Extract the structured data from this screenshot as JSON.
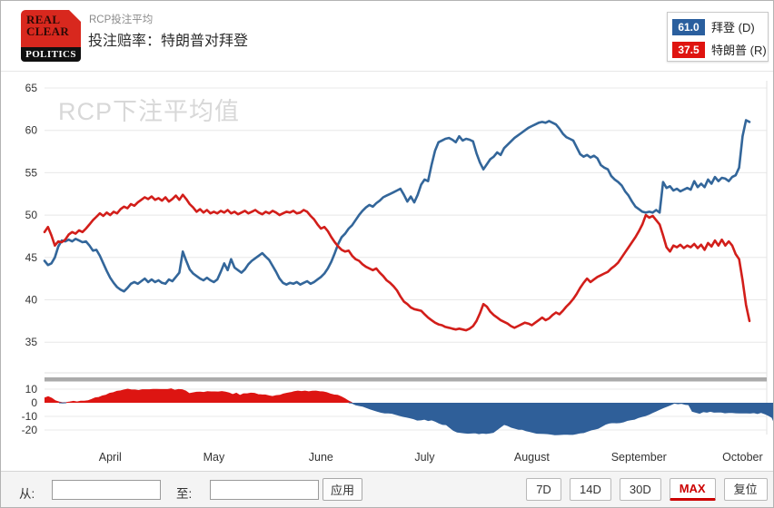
{
  "header": {
    "brand": {
      "line1": "REAL",
      "line2": "CLEAR",
      "line3": "POLITICS"
    },
    "subtitle": "RCP投注平均",
    "title": "投注赔率：特朗普对拜登"
  },
  "legend": {
    "items": [
      {
        "value": "61.0",
        "label": "拜登 (D)",
        "color": "#2a5f9e"
      },
      {
        "value": "37.5",
        "label": "特朗普 (R)",
        "color": "#df1410"
      }
    ]
  },
  "controls": {
    "from_label": "从:",
    "to_label": "至:",
    "from_value": "",
    "to_value": "",
    "apply_label": "应用",
    "range_buttons": [
      {
        "key": "7d",
        "label": "7D",
        "active": false
      },
      {
        "key": "14d",
        "label": "14D",
        "active": false
      },
      {
        "key": "30d",
        "label": "30D",
        "active": false
      },
      {
        "key": "max",
        "label": "MAX",
        "active": true
      },
      {
        "key": "reset",
        "label": "复位",
        "active": false
      }
    ]
  },
  "chart_data": {
    "type": "line",
    "watermark": "RCP下注平均值",
    "main_panel": {
      "y_ticks": [
        65,
        60,
        55,
        50,
        45,
        40,
        35
      ],
      "ylim": [
        31.5,
        66
      ]
    },
    "navigator_panel": {
      "formula": "特朗普 - 拜登 (difference, red = Trump lead, blue = Biden lead)",
      "y_ticks": [
        10,
        0,
        -10,
        -20
      ],
      "ylim": [
        -25,
        12
      ]
    },
    "x_axis": {
      "unit": "day_index",
      "month_ticks": [
        {
          "label": "April",
          "day": 19
        },
        {
          "label": "May",
          "day": 49
        },
        {
          "label": "June",
          "day": 80
        },
        {
          "label": "July",
          "day": 110
        },
        {
          "label": "August",
          "day": 141
        },
        {
          "label": "September",
          "day": 172
        },
        {
          "label": "October",
          "day": 202
        }
      ]
    },
    "series": [
      {
        "name": "拜登 (D)",
        "color": "#33669a",
        "current": 61.0,
        "day_start": 0,
        "day_step": 1,
        "values": [
          44.6,
          44.1,
          44.3,
          45.0,
          46.3,
          47.0,
          46.9,
          47.1,
          46.9,
          47.2,
          47.0,
          46.8,
          46.9,
          46.4,
          45.8,
          45.9,
          45.2,
          44.3,
          43.4,
          42.6,
          42.0,
          41.5,
          41.2,
          41.0,
          41.4,
          41.9,
          42.1,
          41.9,
          42.2,
          42.5,
          42.1,
          42.4,
          42.1,
          42.3,
          42.0,
          41.9,
          42.4,
          42.2,
          42.7,
          43.2,
          45.7,
          44.6,
          43.6,
          43.1,
          42.8,
          42.5,
          42.3,
          42.6,
          42.3,
          42.1,
          42.4,
          43.3,
          44.3,
          43.5,
          44.8,
          43.8,
          43.5,
          43.2,
          43.6,
          44.2,
          44.6,
          44.9,
          45.2,
          45.5,
          45.1,
          44.7,
          44.0,
          43.3,
          42.5,
          42.0,
          41.8,
          42.0,
          41.9,
          42.1,
          41.8,
          42.0,
          42.2,
          41.9,
          42.1,
          42.4,
          42.7,
          43.1,
          43.7,
          44.5,
          45.5,
          46.6,
          47.4,
          47.8,
          48.4,
          48.8,
          49.4,
          50.0,
          50.5,
          50.9,
          51.2,
          51.0,
          51.4,
          51.7,
          52.1,
          52.3,
          52.5,
          52.7,
          52.9,
          53.1,
          52.4,
          51.6,
          52.2,
          51.5,
          52.4,
          53.6,
          54.2,
          54.0,
          55.9,
          57.6,
          58.6,
          58.8,
          59.0,
          59.1,
          58.9,
          58.6,
          59.3,
          58.8,
          59.0,
          58.9,
          58.7,
          57.3,
          56.2,
          55.4,
          56.0,
          56.6,
          56.9,
          57.4,
          57.1,
          57.9,
          58.3,
          58.7,
          59.1,
          59.4,
          59.7,
          60.0,
          60.3,
          60.5,
          60.7,
          60.9,
          61.0,
          60.9,
          61.1,
          60.9,
          60.7,
          60.2,
          59.6,
          59.2,
          59.0,
          58.8,
          58.0,
          57.2,
          56.9,
          57.1,
          56.8,
          57.0,
          56.7,
          55.9,
          55.6,
          55.4,
          54.6,
          54.2,
          53.9,
          53.5,
          52.8,
          52.3,
          51.6,
          51.0,
          50.7,
          50.4,
          50.3,
          50.4,
          50.3,
          50.6,
          50.3,
          53.9,
          53.2,
          53.4,
          52.9,
          53.1,
          52.8,
          53.0,
          53.2,
          53.0,
          54.0,
          53.3,
          53.7,
          53.3,
          54.2,
          53.7,
          54.5,
          54.0,
          54.4,
          54.3,
          54.0,
          54.5,
          54.7,
          55.6,
          59.3,
          61.2,
          61.0
        ]
      },
      {
        "name": "特朗普 (R)",
        "color": "#d21e1a",
        "current": 37.5,
        "day_start": 0,
        "day_step": 1,
        "values": [
          48.0,
          48.6,
          47.6,
          46.4,
          46.9,
          46.8,
          47.1,
          47.7,
          48.0,
          47.8,
          48.2,
          48.0,
          48.4,
          48.9,
          49.4,
          49.8,
          50.2,
          49.9,
          50.3,
          50.0,
          50.4,
          50.2,
          50.7,
          51.0,
          50.8,
          51.3,
          51.1,
          51.5,
          51.8,
          52.1,
          51.9,
          52.2,
          51.8,
          52.0,
          51.7,
          52.1,
          51.6,
          51.9,
          52.3,
          51.8,
          52.4,
          51.9,
          51.3,
          50.9,
          50.4,
          50.7,
          50.3,
          50.6,
          50.2,
          50.4,
          50.2,
          50.5,
          50.3,
          50.6,
          50.2,
          50.4,
          50.1,
          50.3,
          50.5,
          50.2,
          50.4,
          50.6,
          50.3,
          50.1,
          50.4,
          50.2,
          50.5,
          50.3,
          50.0,
          50.2,
          50.4,
          50.3,
          50.5,
          50.2,
          50.3,
          50.6,
          50.4,
          49.9,
          49.5,
          48.9,
          48.4,
          48.6,
          48.1,
          47.4,
          46.8,
          46.3,
          45.9,
          45.7,
          45.8,
          45.2,
          44.8,
          44.6,
          44.2,
          43.9,
          43.7,
          43.5,
          43.7,
          43.2,
          42.8,
          42.3,
          42.0,
          41.6,
          41.1,
          40.4,
          39.8,
          39.5,
          39.1,
          38.9,
          38.8,
          38.7,
          38.3,
          37.9,
          37.6,
          37.3,
          37.1,
          37.0,
          36.8,
          36.7,
          36.6,
          36.5,
          36.6,
          36.5,
          36.4,
          36.6,
          36.9,
          37.5,
          38.4,
          39.5,
          39.2,
          38.6,
          38.2,
          37.9,
          37.6,
          37.4,
          37.2,
          36.9,
          36.7,
          36.9,
          37.1,
          37.3,
          37.2,
          37.0,
          37.3,
          37.6,
          37.9,
          37.6,
          37.8,
          38.2,
          38.5,
          38.3,
          38.7,
          39.2,
          39.6,
          40.1,
          40.7,
          41.4,
          42.0,
          42.5,
          42.1,
          42.4,
          42.7,
          42.9,
          43.1,
          43.3,
          43.7,
          44.0,
          44.4,
          45.0,
          45.6,
          46.2,
          46.8,
          47.4,
          48.1,
          48.9,
          50.0,
          49.7,
          49.9,
          49.4,
          48.9,
          47.6,
          46.2,
          45.7,
          46.4,
          46.2,
          46.5,
          46.1,
          46.4,
          46.2,
          46.6,
          46.1,
          46.5,
          45.9,
          46.7,
          46.3,
          47.0,
          46.4,
          47.1,
          46.4,
          46.9,
          46.4,
          45.4,
          44.8,
          42.3,
          39.4,
          37.5
        ]
      }
    ],
    "colors": {
      "grid": "#e8e8e8",
      "watermark": "#d8d8d8",
      "separator_bar": "#ababab",
      "nav_positive_fill": "#dd1512",
      "nav_negative_fill": "#2f5f99"
    }
  }
}
